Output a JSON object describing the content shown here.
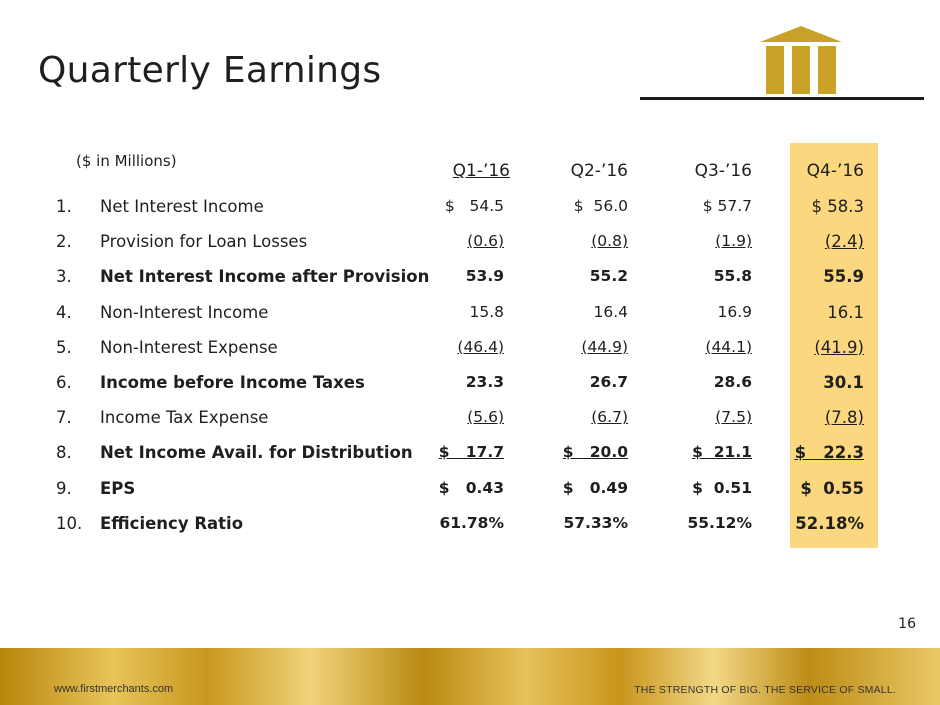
{
  "title": "Quarterly Earnings",
  "units_note": "($ in Millions)",
  "columns": [
    "Q1-’16",
    "Q2-’16",
    "Q3-’16",
    "Q4-’16"
  ],
  "rows": [
    {
      "num": "1.",
      "label": "Net Interest Income",
      "bold": false,
      "underline": false,
      "values": [
        "$   54.5",
        "$  56.0",
        "$ 57.7",
        "$ 58.3"
      ]
    },
    {
      "num": "2.",
      "label": "Provision for Loan Losses",
      "bold": false,
      "underline": true,
      "values": [
        "(0.6)",
        "(0.8)",
        "(1.9)",
        "(2.4)"
      ]
    },
    {
      "num": "3.",
      "label": "Net Interest Income after Provision",
      "bold": true,
      "underline": false,
      "values": [
        "53.9",
        "55.2",
        "55.8",
        "55.9"
      ]
    },
    {
      "num": "4.",
      "label": "Non-Interest Income",
      "bold": false,
      "underline": false,
      "values": [
        "15.8",
        "16.4",
        "16.9",
        "16.1"
      ]
    },
    {
      "num": "5.",
      "label": "Non-Interest Expense",
      "bold": false,
      "underline": true,
      "values": [
        "(46.4)",
        "(44.9)",
        "(44.1)",
        "(41.9)"
      ]
    },
    {
      "num": "6.",
      "label": "Income before Income Taxes",
      "bold": true,
      "underline": false,
      "values": [
        "23.3",
        "26.7",
        "28.6",
        "30.1"
      ]
    },
    {
      "num": "7.",
      "label": "Income Tax Expense",
      "bold": false,
      "underline": true,
      "values": [
        "(5.6)",
        "(6.7)",
        "(7.5)",
        "(7.8)"
      ]
    },
    {
      "num": "8.",
      "label": "Net Income Avail. for Distribution",
      "bold": true,
      "underline": true,
      "values": [
        "$   17.7",
        "$   20.0",
        "$  21.1",
        "$   22.3"
      ]
    },
    {
      "num": "9.",
      "label": "EPS",
      "bold": true,
      "underline": false,
      "values": [
        "$   0.43",
        "$   0.49",
        "$  0.51",
        "$  0.55"
      ]
    },
    {
      "num": "10.",
      "label": "Efficiency Ratio",
      "bold": true,
      "underline": false,
      "values": [
        "61.78%",
        "57.33%",
        "55.12%",
        "52.18%"
      ]
    }
  ],
  "page_number": "16",
  "logo_mark": "®",
  "footer": {
    "url": "www.firstmerchants.com",
    "tagline": "THE STRENGTH OF BIG. THE SERVICE OF SMALL."
  },
  "colors": {
    "highlight": "#fbd87f",
    "logo_gold": "#c9a227",
    "text": "#1f1f1f"
  },
  "icons": {
    "logo": "building-columns-logo"
  }
}
